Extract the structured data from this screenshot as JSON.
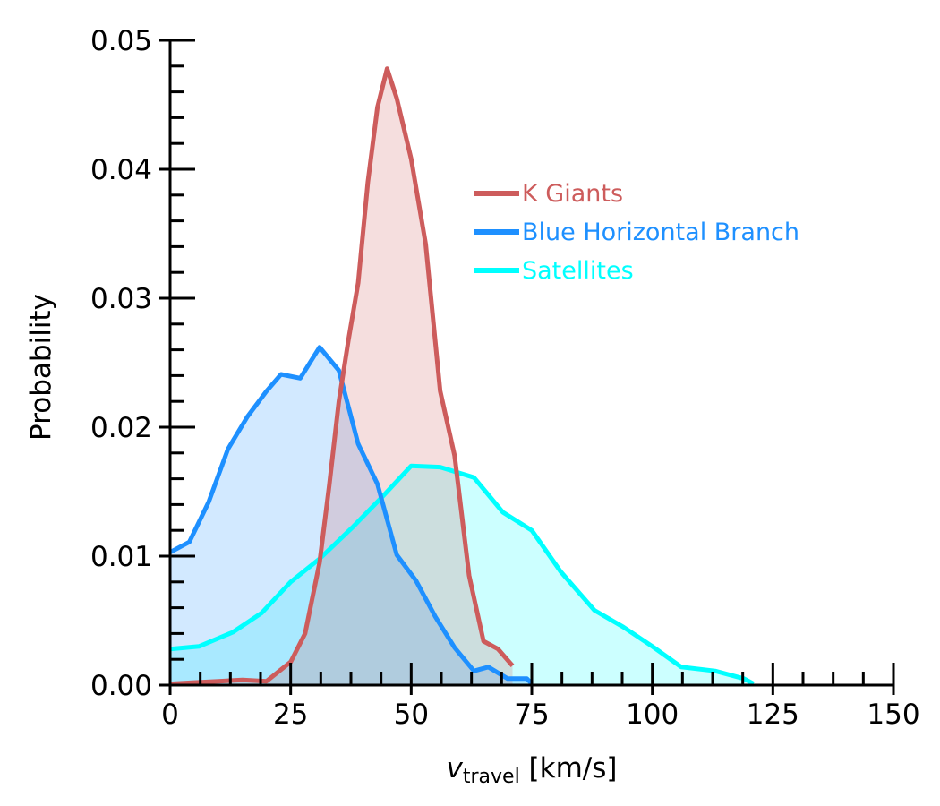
{
  "chart_data": {
    "type": "line",
    "xlabel": {
      "main": "v",
      "sub": "travel",
      "unit": " [km/s]"
    },
    "ylabel": "Probability",
    "xlim": [
      0,
      150
    ],
    "ylim": [
      0,
      0.05
    ],
    "x_ticks": [
      0,
      25,
      50,
      75,
      100,
      125,
      150
    ],
    "x_tick_labels": [
      "0",
      "25",
      "50",
      "75",
      "100",
      "125",
      "150"
    ],
    "y_ticks": [
      0,
      0.01,
      0.02,
      0.03,
      0.04,
      0.05
    ],
    "y_tick_labels": [
      "0.00",
      "0.01",
      "0.02",
      "0.03",
      "0.04",
      "0.05"
    ],
    "grid": false,
    "legend_position": "upper-right",
    "series": [
      {
        "name": "Satellites",
        "color": "#00ffff",
        "fill": "#00ffff",
        "fill_opacity": 0.2,
        "x": [
          0,
          6,
          13,
          19,
          25,
          31,
          38,
          44,
          50,
          56,
          63,
          69,
          75,
          81,
          88,
          94,
          100,
          106,
          113,
          119,
          121
        ],
        "y": [
          0.0028,
          0.003,
          0.0041,
          0.0056,
          0.008,
          0.0098,
          0.0123,
          0.0146,
          0.017,
          0.0169,
          0.0161,
          0.0134,
          0.012,
          0.0088,
          0.0058,
          0.0045,
          0.003,
          0.0014,
          0.0011,
          0.0005,
          0.0001
        ]
      },
      {
        "name": "Blue Horizontal Branch",
        "color": "#1e90ff",
        "fill": "#1e90ff",
        "fill_opacity": 0.2,
        "x": [
          0,
          4,
          8,
          12,
          16,
          20,
          23,
          27,
          31,
          35,
          39,
          43,
          47,
          51,
          55,
          59,
          63,
          66,
          70,
          72,
          74,
          75
        ],
        "y": [
          0.0103,
          0.0111,
          0.0142,
          0.0183,
          0.0208,
          0.0228,
          0.0241,
          0.0238,
          0.0262,
          0.0244,
          0.0187,
          0.0156,
          0.0101,
          0.0081,
          0.0053,
          0.0029,
          0.0011,
          0.0014,
          0.0005,
          0.0005,
          0.0005,
          0.0001
        ]
      },
      {
        "name": "K Giants",
        "color": "#cd5c5c",
        "fill": "#cd5c5c",
        "fill_opacity": 0.2,
        "x": [
          0,
          5,
          10,
          15,
          20,
          25,
          28,
          31,
          33,
          35,
          37,
          39,
          41,
          43,
          45,
          47,
          50,
          53,
          56,
          59,
          62,
          65,
          68,
          71
        ],
        "y": [
          0.0001,
          0.0002,
          0.0003,
          0.0004,
          0.0003,
          0.0018,
          0.004,
          0.0095,
          0.0155,
          0.022,
          0.0268,
          0.0312,
          0.039,
          0.0448,
          0.0478,
          0.0455,
          0.0408,
          0.0342,
          0.0228,
          0.0178,
          0.0085,
          0.0034,
          0.0028,
          0.0015
        ]
      }
    ],
    "legend_order": [
      "K Giants",
      "Blue Horizontal Branch",
      "Satellites"
    ]
  }
}
